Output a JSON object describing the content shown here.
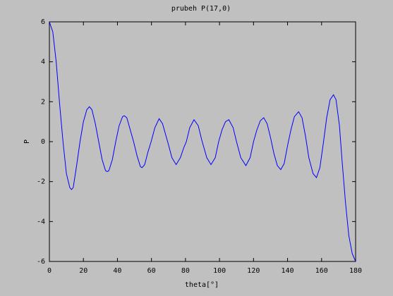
{
  "chart_data": {
    "type": "line",
    "title": "prubeh P(17,0)",
    "x_label": "theta[°]",
    "y_label": "P",
    "x": [
      0,
      2,
      4,
      6,
      8,
      10,
      12,
      13,
      14,
      16,
      18,
      20,
      22,
      23.5,
      25,
      27,
      29,
      31,
      33,
      34,
      35,
      37,
      39,
      41,
      43,
      44,
      45.5,
      47.5,
      49.5,
      51.5,
      53.5,
      54.5,
      56,
      58,
      59.8,
      62,
      64.5,
      66.5,
      68.5,
      70,
      72,
      74.5,
      77,
      79,
      80.5,
      82.5,
      85,
      87.5,
      89.5,
      92.5,
      95,
      97.5,
      99.5,
      101.5,
      103.5,
      105.5,
      108,
      110,
      112.5,
      115.5,
      118,
      120,
      122,
      124,
      126,
      128,
      130,
      132,
      134,
      136,
      138,
      140,
      142,
      144,
      146.5,
      148.5,
      150.5,
      152.5,
      155,
      157,
      159,
      161,
      163,
      165,
      167,
      168.5,
      170.5,
      172,
      174,
      176,
      178,
      180
    ],
    "series": [
      {
        "name": "P(17,0)",
        "color": "#0000ff",
        "values": [
          6,
          5.5,
          4.0,
          1.9,
          0,
          -1.6,
          -2.3,
          -2.4,
          -2.3,
          -1.2,
          0,
          1.0,
          1.6,
          1.75,
          1.6,
          0.9,
          0,
          -0.9,
          -1.45,
          -1.5,
          -1.45,
          -0.9,
          0,
          0.8,
          1.25,
          1.3,
          1.2,
          0.6,
          0,
          -0.7,
          -1.25,
          -1.3,
          -1.15,
          -0.5,
          0,
          0.7,
          1.15,
          0.9,
          0.3,
          -0.15,
          -0.8,
          -1.15,
          -0.8,
          -0.3,
          0,
          0.7,
          1.1,
          0.8,
          0.1,
          -0.8,
          -1.15,
          -0.8,
          0,
          0.6,
          1.0,
          1.1,
          0.7,
          0,
          -0.8,
          -1.2,
          -0.8,
          0,
          0.6,
          1.05,
          1.2,
          0.9,
          0.2,
          -0.6,
          -1.2,
          -1.4,
          -1.1,
          -0.2,
          0.6,
          1.25,
          1.5,
          1.2,
          0.3,
          -0.8,
          -1.6,
          -1.8,
          -1.3,
          -0.1,
          1.2,
          2.1,
          2.35,
          2.1,
          0.8,
          -0.9,
          -3.0,
          -4.7,
          -5.6,
          -6
        ]
      }
    ],
    "xlim": [
      0,
      180
    ],
    "ylim": [
      -6,
      6
    ],
    "xticks": [
      0,
      20,
      40,
      60,
      80,
      100,
      120,
      140,
      160,
      180
    ],
    "yticks": [
      -6,
      -4,
      -2,
      0,
      2,
      4,
      6
    ]
  }
}
